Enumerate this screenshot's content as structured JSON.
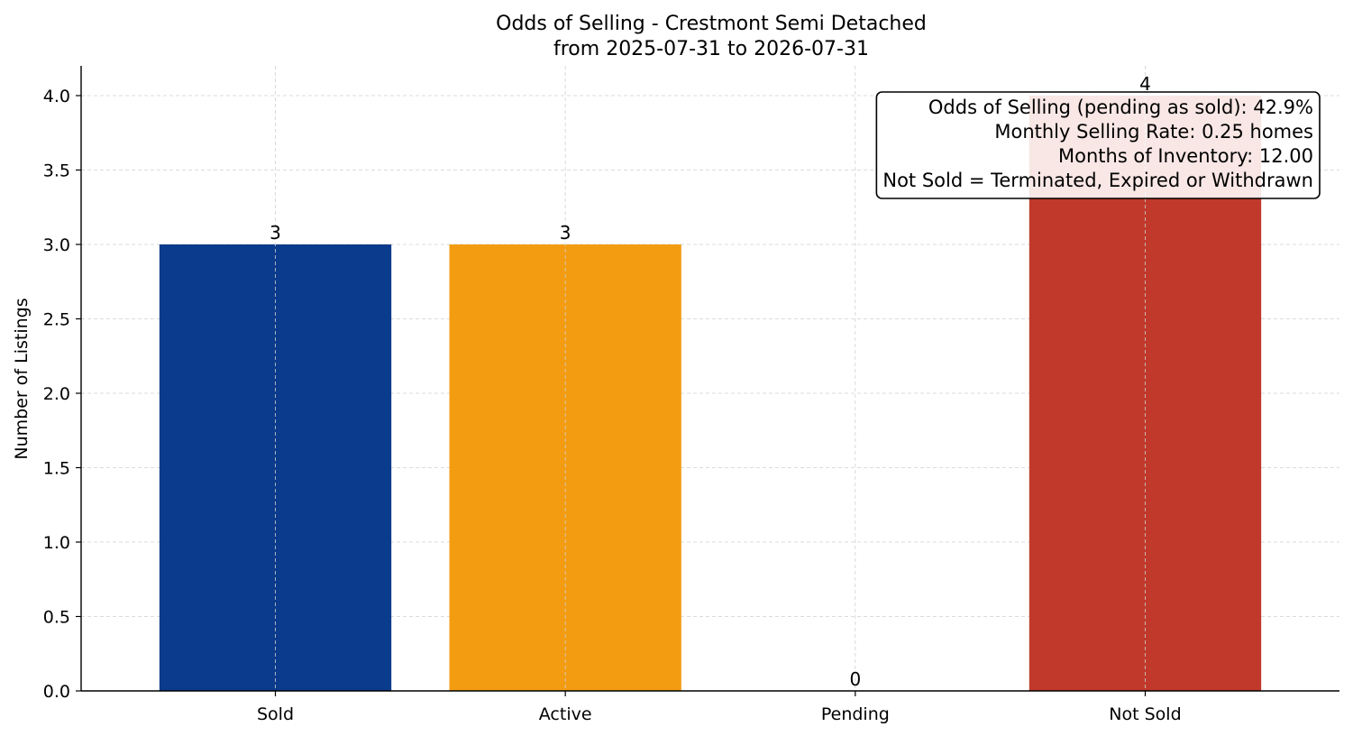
{
  "chart_data": {
    "type": "bar",
    "title": "Odds of Selling - Crestmont Semi Detached",
    "subtitle": "from 2025-07-31 to 2026-07-31",
    "xlabel": "",
    "ylabel": "Number of Listings",
    "categories": [
      "Sold",
      "Active",
      "Pending",
      "Not Sold"
    ],
    "values": [
      3,
      3,
      0,
      4
    ],
    "bar_labels": [
      "3",
      "3",
      "0",
      "4"
    ],
    "colors": [
      "#0b3b8c",
      "#f39c12",
      "#8e44ad",
      "#c0392b"
    ],
    "ylim": [
      0,
      4.2
    ],
    "yticks": [
      0.0,
      0.5,
      1.0,
      1.5,
      2.0,
      2.5,
      3.0,
      3.5,
      4.0
    ],
    "ytick_labels": [
      "0.0",
      "0.5",
      "1.0",
      "1.5",
      "2.0",
      "2.5",
      "3.0",
      "3.5",
      "4.0"
    ],
    "grid": true,
    "annotation": {
      "lines": [
        "Odds of Selling (pending as sold): 42.9%",
        "Monthly Selling Rate: 0.25 homes",
        "Months of Inventory: 12.00",
        "Not Sold = Terminated, Expired or Withdrawn"
      ],
      "placement": "top-right"
    }
  }
}
